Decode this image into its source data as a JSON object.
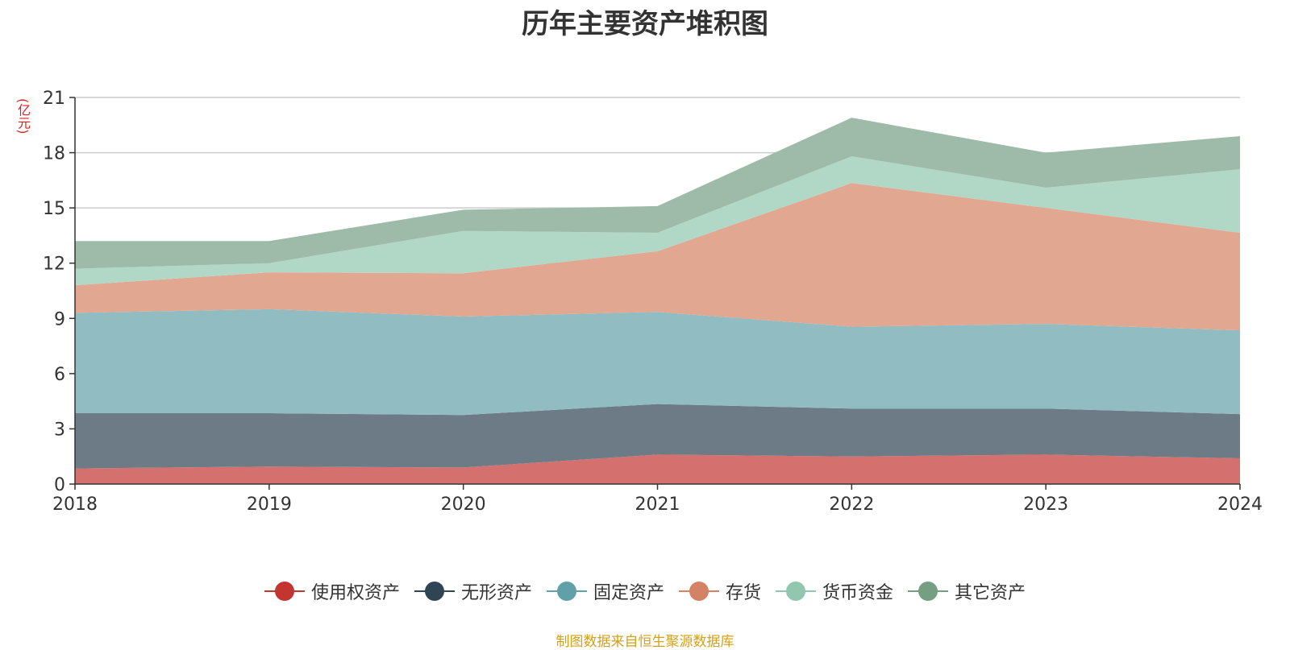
{
  "chart_data": {
    "type": "area",
    "stacked": true,
    "title": "历年主要资产堆积图",
    "ylabel": "亿元",
    "y_unit_display": "(亿元)",
    "xlabel": "",
    "categories": [
      "2018",
      "2019",
      "2020",
      "2021",
      "2022",
      "2023",
      "2024"
    ],
    "ylim": [
      0,
      21
    ],
    "yticks": [
      0,
      3,
      6,
      9,
      12,
      15,
      18,
      21
    ],
    "grid": true,
    "legend_position": "bottom",
    "series": [
      {
        "name": "使用权资产",
        "color": "#c23531",
        "fill": "#d4706d",
        "values": [
          0.85,
          0.95,
          0.9,
          1.6,
          1.5,
          1.6,
          1.4
        ]
      },
      {
        "name": "无形资产",
        "color": "#2f4554",
        "fill": "#6d7b86",
        "values": [
          3.0,
          2.9,
          2.85,
          2.75,
          2.6,
          2.5,
          2.4
        ]
      },
      {
        "name": "固定资产",
        "color": "#61a0a8",
        "fill": "#91bcc2",
        "values": [
          5.45,
          5.65,
          5.35,
          5.0,
          4.45,
          4.6,
          4.55
        ]
      },
      {
        "name": "存货",
        "color": "#d48265",
        "fill": "#e1a791",
        "values": [
          1.5,
          2.0,
          2.35,
          3.3,
          7.8,
          6.3,
          5.3
        ]
      },
      {
        "name": "货币资金",
        "color": "#91c7ae",
        "fill": "#b1d8c6",
        "values": [
          0.9,
          0.5,
          2.3,
          1.0,
          1.45,
          1.1,
          3.45
        ]
      },
      {
        "name": "其它资产",
        "color": "#749f83",
        "fill": "#9dbba8",
        "values": [
          1.5,
          1.2,
          1.15,
          1.45,
          2.1,
          1.9,
          1.8
        ]
      }
    ]
  },
  "footer": {
    "source": "制图数据来自恒生聚源数据库"
  }
}
